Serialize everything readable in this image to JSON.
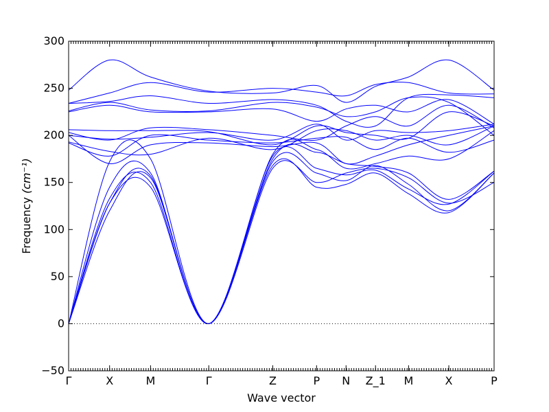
{
  "chart_data": {
    "type": "line",
    "xlabel": "Wave vector",
    "ylabel": "Frequency",
    "ylabel_unit": "(cm⁻¹)",
    "ylim": [
      -50,
      300
    ],
    "yticks": [
      -50,
      0,
      50,
      100,
      150,
      200,
      250,
      300
    ],
    "zero_line": true,
    "line_color": "#0000ff",
    "kpoints": [
      {
        "label": "Γ",
        "x": 0.0
      },
      {
        "label": "X",
        "x": 0.57
      },
      {
        "label": "M",
        "x": 1.14
      },
      {
        "label": "Γ",
        "x": 1.95
      },
      {
        "label": "Z",
        "x": 2.84
      },
      {
        "label": "P",
        "x": 3.45
      },
      {
        "label": "N",
        "x": 3.86
      },
      {
        "label": "Z_1",
        "x": 4.27
      },
      {
        "label": "M",
        "x": 4.73
      },
      {
        "label": "X",
        "x": 5.29
      },
      {
        "label": "P",
        "x": 5.92
      }
    ],
    "series": [
      {
        "values": [
          0,
          120,
          155,
          0,
          165,
          150,
          160,
          165,
          155,
          128,
          150
        ]
      },
      {
        "values": [
          0,
          128,
          157,
          0,
          172,
          160,
          152,
          168,
          148,
          120,
          160
        ]
      },
      {
        "values": [
          0,
          133,
          150,
          0,
          178,
          165,
          158,
          163,
          143,
          127,
          162
        ]
      },
      {
        "values": [
          0,
          128,
          145,
          0,
          168,
          145,
          148,
          160,
          138,
          118,
          160
        ]
      },
      {
        "values": [
          0,
          145,
          160,
          0,
          175,
          182,
          170,
          167,
          160,
          132,
          162
        ]
      },
      {
        "values": [
          0,
          172,
          175,
          0,
          180,
          185,
          165,
          170,
          178,
          175,
          205
        ]
      },
      {
        "values": [
          200,
          170,
          190,
          192,
          188,
          192,
          170,
          178,
          190,
          200,
          210
        ]
      },
      {
        "values": [
          192,
          178,
          200,
          195,
          192,
          197,
          198,
          185,
          197,
          182,
          195
        ]
      },
      {
        "values": [
          193,
          183,
          180,
          197,
          185,
          205,
          205,
          195,
          200,
          190,
          210
        ]
      },
      {
        "values": [
          200,
          196,
          198,
          203,
          195,
          212,
          195,
          205,
          203,
          205,
          212
        ]
      },
      {
        "values": [
          203,
          195,
          208,
          206,
          200,
          195,
          210,
          220,
          210,
          232,
          208
        ]
      },
      {
        "values": [
          206,
          205,
          205,
          204,
          190,
          210,
          203,
          200,
          197,
          225,
          210
        ]
      },
      {
        "values": [
          225,
          232,
          225,
          225,
          228,
          215,
          228,
          232,
          225,
          238,
          212
        ]
      },
      {
        "values": [
          226,
          235,
          227,
          226,
          235,
          230,
          220,
          225,
          240,
          235,
          200
        ]
      },
      {
        "values": [
          234,
          236,
          242,
          234,
          238,
          232,
          215,
          210,
          240,
          243,
          240
        ]
      },
      {
        "values": [
          234,
          245,
          256,
          246,
          250,
          246,
          242,
          254,
          256,
          245,
          244
        ]
      },
      {
        "values": [
          248,
          280,
          262,
          247,
          245,
          253,
          235,
          252,
          262,
          280,
          248
        ]
      }
    ]
  }
}
